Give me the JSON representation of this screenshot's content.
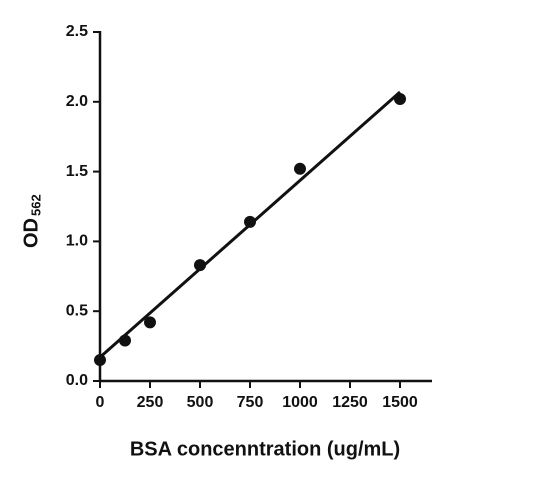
{
  "chart_data": {
    "type": "scatter",
    "x_label": "BSA concenntration (ug/mL)",
    "y_label": {
      "text": "OD",
      "subscript": "562"
    },
    "x": [
      0,
      125,
      250,
      500,
      750,
      1000,
      1500
    ],
    "values": [
      0.15,
      0.29,
      0.42,
      0.83,
      1.14,
      1.52,
      2.02
    ],
    "color": "#111111",
    "fit_line": {
      "x": [
        0,
        1500
      ],
      "values": [
        0.17,
        2.07
      ]
    },
    "xlim": [
      0,
      1660
    ],
    "ylim": [
      0,
      2.5
    ],
    "xticks": [
      0,
      250,
      500,
      750,
      1000,
      1250,
      1500
    ],
    "yticks": [
      {
        "value": 0,
        "label": "0.0"
      },
      0.5,
      {
        "value": 1,
        "label": "1.0"
      },
      1.5,
      {
        "value": 2,
        "label": "2.0"
      },
      2.5
    ]
  }
}
